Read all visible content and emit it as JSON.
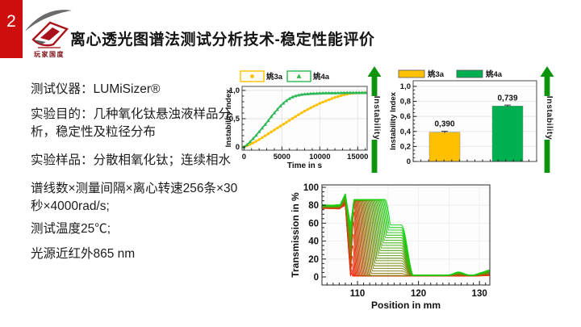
{
  "slide": {
    "page_number": "2",
    "title": "离心透光图谱法测试分析技术-稳定性能评价",
    "logo": {
      "caption": "玩家国度"
    }
  },
  "info": {
    "lines": [
      "测试仪器：LUMiSizer®",
      "实验目的：几种氧化钛悬浊液样品分析，稳定性及粒径分布",
      "实验样品：分散相氧化钛；连续相水",
      "谱线数×测量间隔×离心转速256条×30秒×4000rad/s;",
      "测试温度25℃;",
      "光源近红外865 nm"
    ]
  },
  "arrows": {
    "label": "Instability",
    "color": "#0C950C",
    "text_color": "#1b1b1b"
  },
  "chart_data": [
    {
      "type": "line",
      "title": "",
      "xlabel": "Time in s",
      "ylabel": "Instability Index",
      "xlim": [
        -250,
        16250
      ],
      "ylim": [
        -0.057,
        1.071
      ],
      "xticks": [
        0,
        5000,
        10000,
        15000
      ],
      "x_minor_step": 1000,
      "yticks": [
        {
          "v": 0,
          "label": "0"
        },
        {
          "v": 0.5,
          "label": "0,5"
        },
        {
          "v": 1.0,
          "label": "1,0"
        }
      ],
      "y_minor_step": 0.1,
      "grid": true,
      "legend_position": "top",
      "series": [
        {
          "name": "姚3a",
          "color": "#FFC000",
          "marker": "circle",
          "points": [
            [
              0,
              0
            ],
            [
              1000,
              0.055
            ],
            [
              2000,
              0.13
            ],
            [
              3000,
              0.215
            ],
            [
              4000,
              0.3
            ],
            [
              5000,
              0.385
            ],
            [
              6000,
              0.47
            ],
            [
              7000,
              0.555
            ],
            [
              8000,
              0.635
            ],
            [
              9000,
              0.705
            ],
            [
              10000,
              0.77
            ],
            [
              11000,
              0.825
            ],
            [
              12000,
              0.875
            ],
            [
              13000,
              0.915
            ],
            [
              14000,
              0.945
            ],
            [
              15000,
              0.955
            ],
            [
              16200,
              0.96
            ]
          ]
        },
        {
          "name": "姚4a",
          "color": "#2DB757",
          "marker": "triangle",
          "points": [
            [
              0,
              0
            ],
            [
              500,
              0.05
            ],
            [
              1000,
              0.12
            ],
            [
              1500,
              0.19
            ],
            [
              2000,
              0.27
            ],
            [
              2500,
              0.35
            ],
            [
              3000,
              0.43
            ],
            [
              3500,
              0.52
            ],
            [
              4000,
              0.6
            ],
            [
              4500,
              0.68
            ],
            [
              5000,
              0.75
            ],
            [
              5500,
              0.81
            ],
            [
              6000,
              0.855
            ],
            [
              6500,
              0.89
            ],
            [
              7000,
              0.91
            ],
            [
              7500,
              0.925
            ],
            [
              8000,
              0.935
            ],
            [
              9000,
              0.945
            ],
            [
              10000,
              0.95
            ],
            [
              11000,
              0.955
            ],
            [
              12000,
              0.955
            ],
            [
              14000,
              0.96
            ],
            [
              16200,
              0.96
            ]
          ]
        }
      ]
    },
    {
      "type": "bar",
      "title": "",
      "ylabel": "Instability Index",
      "ylim": [
        0,
        1.075
      ],
      "categories": [
        "姚3a",
        "姚4a"
      ],
      "values": [
        0.39,
        0.739
      ],
      "value_labels": [
        "0,390",
        "0,739"
      ],
      "colors": [
        "#FFC000",
        "#00B050"
      ],
      "error": 0.012,
      "yticks": [
        {
          "v": 0,
          "label": "0"
        },
        {
          "v": 0.2,
          "label": "0,2"
        },
        {
          "v": 0.4,
          "label": "0,4"
        },
        {
          "v": 0.6,
          "label": "0,6"
        },
        {
          "v": 0.8,
          "label": "0,8"
        },
        {
          "v": 1.0,
          "label": "1,0"
        }
      ],
      "y_minor_step": 0.05,
      "grid": true,
      "legend_position": "top"
    },
    {
      "type": "line-family",
      "title": "",
      "xlabel": "Position in mm",
      "ylabel": "Transmission in %",
      "xlim": [
        104.17,
        131.7
      ],
      "ylim": [
        -9,
        102.7
      ],
      "xticks": [
        110,
        120,
        130
      ],
      "x_minor_step": 1,
      "yticks": [
        0,
        20,
        40,
        60,
        80,
        100
      ],
      "y_minor_step": 5,
      "grid": true,
      "profiles": {
        "count": 38,
        "color_start": [
          255,
          30,
          10
        ],
        "color_end": [
          18,
          212,
          18
        ],
        "plateau": [
          76.5,
          80
        ],
        "peak": [
          80,
          93
        ],
        "meniscus_flat_end": 107.1,
        "peak_x": 108.0,
        "dip_x": 108.85,
        "dip": [
          1.5,
          58
        ],
        "clear": [
          84,
          86.5
        ],
        "low": [
          1.0,
          2.0
        ],
        "front_start": 108.8,
        "front_travel": 6.8,
        "front_exponent": 1.2,
        "front_width": [
          0.4,
          1.1
        ],
        "shoulder": {
          "amp": [
            0,
            58
          ],
          "f_onset": 0.45,
          "x_end": 117.2,
          "x_fall": 119.3
        },
        "bump_x": 126.6,
        "bump_amp": [
          0,
          3.5
        ],
        "edge_rise": [
          0.5,
          6
        ]
      }
    }
  ]
}
